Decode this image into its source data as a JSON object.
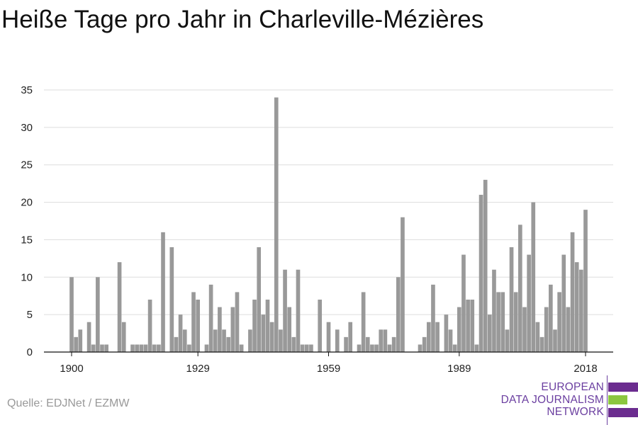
{
  "title": "Heiße Tage pro Jahr in Charleville-Mézières",
  "source": "Quelle: EDJNet / EZMW",
  "logo": {
    "line1": "EUROPEAN",
    "line2": "DATA JOURNALISM",
    "line3": "NETWORK",
    "colors": {
      "text": "#6b3fa0",
      "bar_purple": "#6b2c8f",
      "bar_green": "#8cc63f"
    }
  },
  "chart_data": {
    "type": "bar",
    "title": "Heiße Tage pro Jahr in Charleville-Mézières",
    "xlabel": "",
    "ylabel": "",
    "x_start": 1900,
    "x_end": 2018,
    "ylim": [
      0,
      35
    ],
    "yticks": [
      0,
      5,
      10,
      15,
      20,
      25,
      30,
      35
    ],
    "xticks": [
      1900,
      1929,
      1959,
      1989,
      2018
    ],
    "grid": true,
    "bar_color": "#999999",
    "values": [
      10,
      2,
      3,
      0,
      4,
      1,
      10,
      1,
      1,
      0,
      0,
      12,
      4,
      0,
      1,
      1,
      1,
      1,
      7,
      1,
      1,
      16,
      0,
      14,
      2,
      5,
      3,
      1,
      8,
      7,
      0,
      1,
      9,
      3,
      6,
      3,
      2,
      6,
      8,
      1,
      0,
      3,
      7,
      14,
      5,
      7,
      4,
      34,
      3,
      11,
      6,
      2,
      11,
      1,
      1,
      1,
      0,
      7,
      0,
      4,
      0,
      3,
      0,
      2,
      4,
      0,
      1,
      8,
      2,
      1,
      1,
      3,
      3,
      1,
      2,
      10,
      18,
      0,
      0,
      0,
      1,
      2,
      4,
      9,
      4,
      0,
      5,
      3,
      1,
      6,
      13,
      7,
      7,
      1,
      21,
      23,
      5,
      11,
      8,
      8,
      3,
      14,
      8,
      17,
      6,
      13,
      20,
      4,
      2,
      6,
      9,
      3,
      8,
      13,
      6,
      16,
      12,
      11,
      19
    ]
  }
}
